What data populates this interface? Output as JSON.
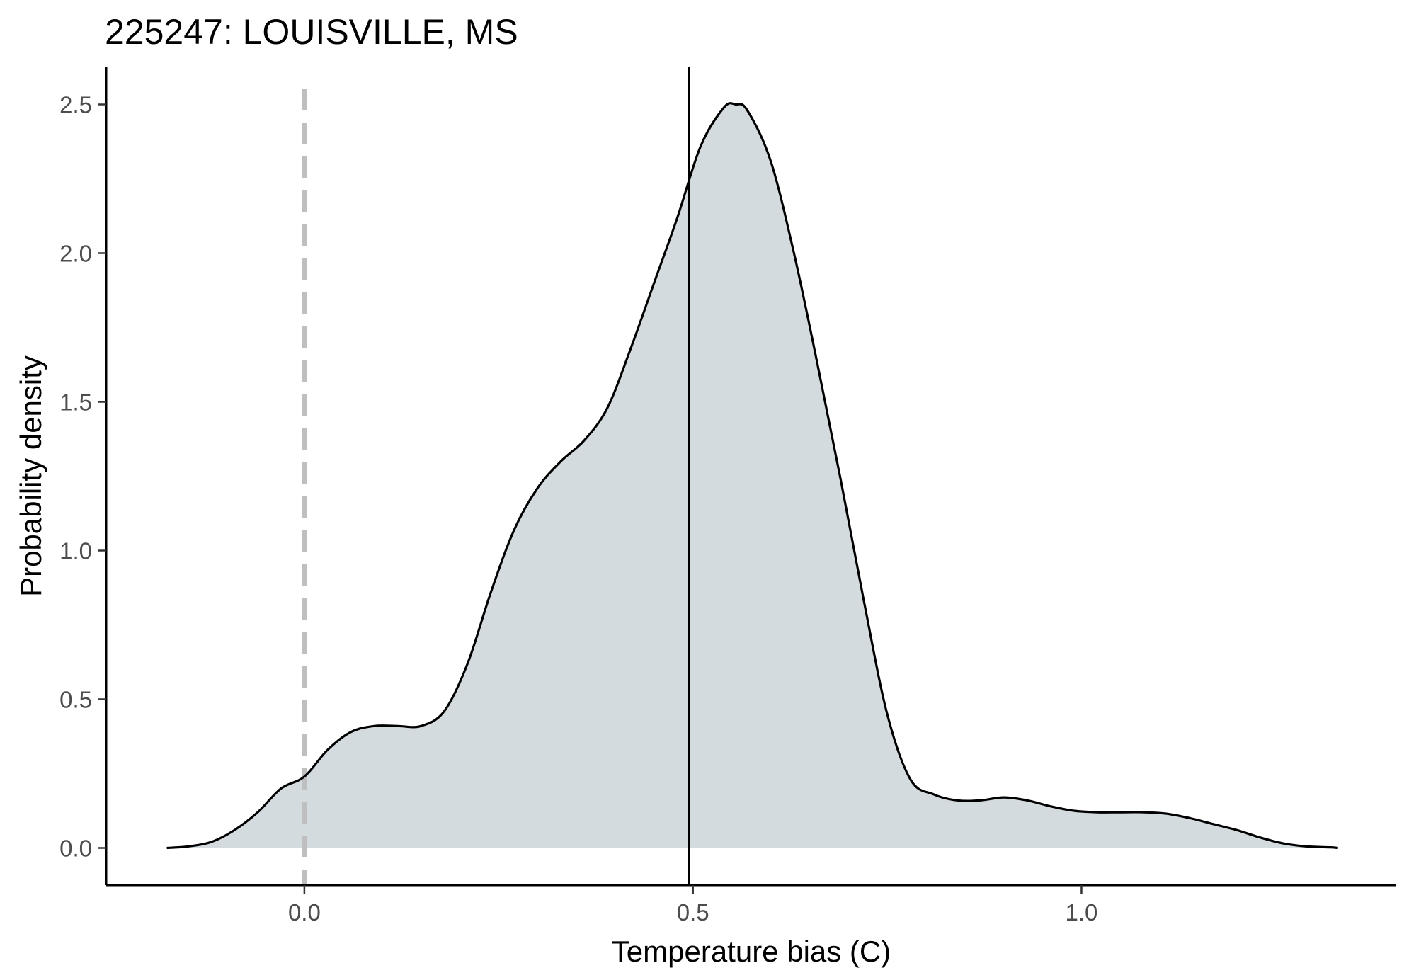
{
  "chart_data": {
    "type": "area",
    "title": "225247: LOUISVILLE, MS",
    "xlabel": "Temperature bias (C)",
    "ylabel": "Probability density",
    "xlim": [
      -0.255,
      1.405
    ],
    "ylim": [
      -0.125,
      2.625
    ],
    "x_ticks": [
      0.0,
      0.5,
      1.0
    ],
    "x_tick_labels": [
      "0.0",
      "0.5",
      "1.0"
    ],
    "y_ticks": [
      0.0,
      0.5,
      1.0,
      1.5,
      2.0,
      2.5
    ],
    "y_tick_labels": [
      "0.0",
      "0.5",
      "1.0",
      "1.5",
      "2.0",
      "2.5"
    ],
    "grid": false,
    "fill_color": "#d3dbdf",
    "line_color": "#000000",
    "reference_lines": [
      {
        "x": 0.0,
        "style": "dashed",
        "color": "#bfbfbf"
      },
      {
        "x": 0.495,
        "style": "solid",
        "color": "#000000"
      }
    ],
    "series": [
      {
        "x": [
          -0.177,
          -0.15,
          -0.12,
          -0.09,
          -0.06,
          -0.03,
          0.0,
          0.03,
          0.06,
          0.09,
          0.12,
          0.15,
          0.18,
          0.21,
          0.24,
          0.27,
          0.3,
          0.33,
          0.36,
          0.39,
          0.42,
          0.45,
          0.48,
          0.51,
          0.54,
          0.555,
          0.57,
          0.6,
          0.63,
          0.66,
          0.69,
          0.72,
          0.75,
          0.78,
          0.81,
          0.84,
          0.87,
          0.9,
          0.93,
          0.96,
          0.99,
          1.02,
          1.05,
          1.08,
          1.11,
          1.14,
          1.17,
          1.2,
          1.23,
          1.26,
          1.29,
          1.32,
          1.33
        ],
        "y": [
          0.0,
          0.005,
          0.02,
          0.06,
          0.12,
          0.2,
          0.24,
          0.33,
          0.39,
          0.41,
          0.41,
          0.41,
          0.46,
          0.62,
          0.86,
          1.07,
          1.21,
          1.3,
          1.37,
          1.48,
          1.68,
          1.9,
          2.12,
          2.36,
          2.49,
          2.5,
          2.48,
          2.31,
          2.0,
          1.63,
          1.24,
          0.83,
          0.45,
          0.23,
          0.18,
          0.16,
          0.16,
          0.17,
          0.16,
          0.14,
          0.125,
          0.12,
          0.12,
          0.12,
          0.115,
          0.1,
          0.08,
          0.06,
          0.035,
          0.015,
          0.005,
          0.002,
          0.0
        ]
      }
    ]
  }
}
